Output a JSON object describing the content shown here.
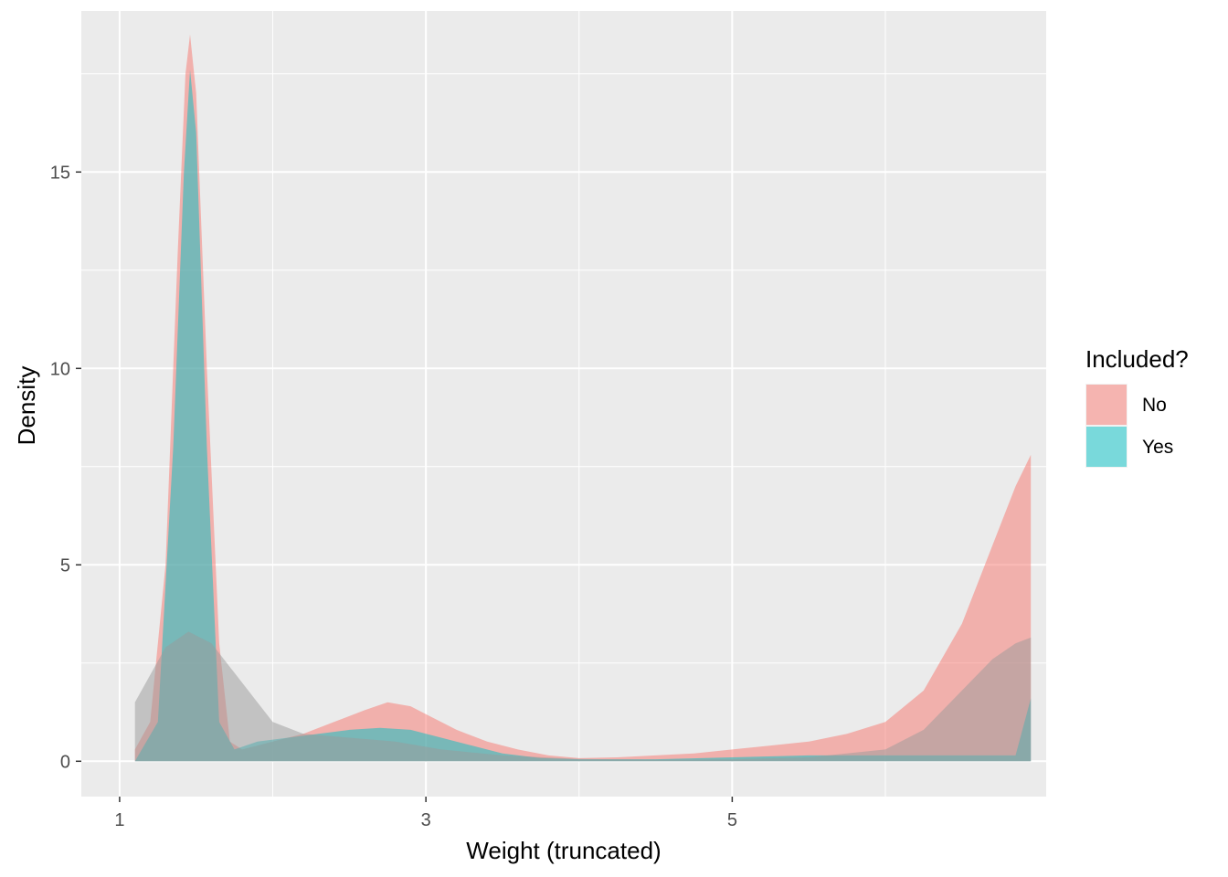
{
  "chart_data": {
    "type": "area",
    "subtype": "density",
    "xlabel": "Weight (truncated)",
    "ylabel": "Density",
    "x_ticks": [
      1,
      3,
      5
    ],
    "y_ticks": [
      0,
      5,
      10,
      15
    ],
    "xlim": [
      0.75,
      7.05
    ],
    "ylim": [
      -0.9,
      19.1
    ],
    "grid": true,
    "legend": {
      "title": "Included?",
      "position": "right"
    },
    "series": [
      {
        "name": "No",
        "color": "#F8766D",
        "points": [
          [
            1.1,
            0.3
          ],
          [
            1.2,
            1.0
          ],
          [
            1.3,
            5.0
          ],
          [
            1.38,
            13.0
          ],
          [
            1.43,
            17.5
          ],
          [
            1.46,
            18.5
          ],
          [
            1.5,
            17.0
          ],
          [
            1.57,
            10.0
          ],
          [
            1.65,
            3.0
          ],
          [
            1.72,
            0.5
          ],
          [
            1.8,
            0.3
          ],
          [
            1.9,
            0.4
          ],
          [
            2.0,
            0.5
          ],
          [
            2.2,
            0.7
          ],
          [
            2.4,
            1.0
          ],
          [
            2.6,
            1.3
          ],
          [
            2.75,
            1.5
          ],
          [
            2.9,
            1.4
          ],
          [
            3.0,
            1.2
          ],
          [
            3.2,
            0.8
          ],
          [
            3.4,
            0.5
          ],
          [
            3.6,
            0.3
          ],
          [
            3.8,
            0.15
          ],
          [
            4.0,
            0.08
          ],
          [
            4.25,
            0.1
          ],
          [
            4.5,
            0.15
          ],
          [
            4.75,
            0.2
          ],
          [
            5.0,
            0.3
          ],
          [
            5.25,
            0.4
          ],
          [
            5.5,
            0.5
          ],
          [
            5.75,
            0.7
          ],
          [
            6.0,
            1.0
          ],
          [
            6.25,
            1.8
          ],
          [
            6.5,
            3.5
          ],
          [
            6.7,
            5.5
          ],
          [
            6.85,
            7.0
          ],
          [
            6.95,
            7.8
          ],
          [
            6.95,
            0.0
          ],
          [
            1.1,
            0.0
          ]
        ]
      },
      {
        "name": "Yes",
        "color": "#00BFC4",
        "points": [
          [
            1.1,
            0.0
          ],
          [
            1.25,
            1.0
          ],
          [
            1.35,
            8.0
          ],
          [
            1.42,
            15.0
          ],
          [
            1.46,
            17.6
          ],
          [
            1.5,
            16.0
          ],
          [
            1.57,
            8.0
          ],
          [
            1.65,
            1.0
          ],
          [
            1.75,
            0.3
          ],
          [
            1.9,
            0.5
          ],
          [
            2.1,
            0.6
          ],
          [
            2.3,
            0.7
          ],
          [
            2.5,
            0.8
          ],
          [
            2.7,
            0.85
          ],
          [
            2.9,
            0.8
          ],
          [
            3.1,
            0.6
          ],
          [
            3.3,
            0.4
          ],
          [
            3.5,
            0.2
          ],
          [
            3.75,
            0.08
          ],
          [
            4.0,
            0.05
          ],
          [
            4.5,
            0.05
          ],
          [
            5.0,
            0.1
          ],
          [
            5.5,
            0.15
          ],
          [
            6.0,
            0.15
          ],
          [
            6.5,
            0.15
          ],
          [
            6.85,
            0.15
          ],
          [
            6.95,
            1.6
          ],
          [
            6.95,
            0.0
          ],
          [
            1.1,
            0.0
          ]
        ]
      },
      {
        "name": "",
        "color": "#999999",
        "points": [
          [
            1.1,
            1.5
          ],
          [
            1.2,
            2.2
          ],
          [
            1.3,
            2.9
          ],
          [
            1.45,
            3.3
          ],
          [
            1.6,
            3.0
          ],
          [
            1.8,
            2.0
          ],
          [
            2.0,
            1.0
          ],
          [
            2.2,
            0.7
          ],
          [
            2.5,
            0.6
          ],
          [
            2.8,
            0.5
          ],
          [
            3.1,
            0.3
          ],
          [
            3.5,
            0.15
          ],
          [
            4.0,
            0.06
          ],
          [
            4.5,
            0.04
          ],
          [
            5.0,
            0.05
          ],
          [
            5.5,
            0.1
          ],
          [
            6.0,
            0.3
          ],
          [
            6.25,
            0.8
          ],
          [
            6.5,
            1.8
          ],
          [
            6.7,
            2.6
          ],
          [
            6.85,
            3.0
          ],
          [
            6.95,
            3.15
          ],
          [
            6.95,
            0.0
          ],
          [
            1.1,
            0.0
          ]
        ]
      }
    ]
  }
}
